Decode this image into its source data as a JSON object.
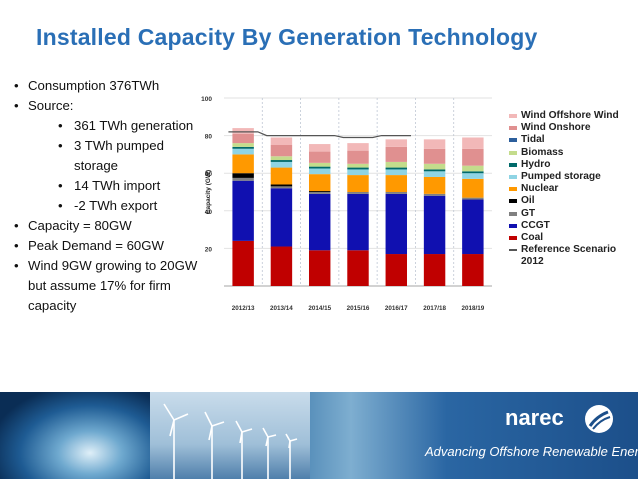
{
  "slide": {
    "title": "Installed Capacity By Generation Technology",
    "bullets": [
      {
        "text": "Consumption 376TWh",
        "level": 1
      },
      {
        "text": "Source:",
        "level": 1
      },
      {
        "text": "361 TWh generation",
        "level": 2
      },
      {
        "text": "3 TWh pumped storage",
        "level": 2
      },
      {
        "text": "14 TWh import",
        "level": 2
      },
      {
        "text": "-2 TWh export",
        "level": 2
      },
      {
        "text": "Capacity = 80GW",
        "level": 1
      },
      {
        "text": "Peak Demand = 60GW",
        "level": 1
      },
      {
        "text": "Wind 9GW growing to 20GW but assume 17% for firm capacity",
        "level": 1
      }
    ]
  },
  "chart_data": {
    "type": "bar",
    "stacked": true,
    "title": "",
    "xlabel": "",
    "ylabel": "Capacity (GW)",
    "ylim": [
      0,
      100
    ],
    "yticks": [
      20,
      40,
      60,
      80,
      100
    ],
    "categories": [
      "2012/13",
      "2013/14",
      "2014/15",
      "2015/16",
      "2016/17",
      "2017/18",
      "2018/19"
    ],
    "series": [
      {
        "name": "Coal",
        "color": "#c00000",
        "values": [
          24,
          21,
          19,
          19,
          17,
          17,
          17
        ]
      },
      {
        "name": "CCGT",
        "color": "#1010b0",
        "values": [
          32,
          31,
          30,
          30,
          32,
          31,
          29
        ]
      },
      {
        "name": "GT",
        "color": "#808080",
        "values": [
          1.5,
          1,
          1,
          1,
          1,
          1,
          1
        ]
      },
      {
        "name": "Oil",
        "color": "#000000",
        "values": [
          2.5,
          1,
          0.5,
          0,
          0,
          0,
          0
        ]
      },
      {
        "name": "Nuclear",
        "color": "#ff9900",
        "values": [
          10,
          9,
          9,
          9,
          9,
          9,
          10
        ]
      },
      {
        "name": "Pumped storage",
        "color": "#8fd4e4",
        "values": [
          3,
          3,
          3,
          3,
          3,
          3,
          3
        ]
      },
      {
        "name": "Hydro",
        "color": "#006a6a",
        "values": [
          1,
          1,
          1,
          1,
          1,
          1,
          1
        ]
      },
      {
        "name": "Biomass",
        "color": "#c4dc8c",
        "values": [
          2,
          2,
          2,
          2,
          3,
          3,
          3
        ]
      },
      {
        "name": "Tidal",
        "color": "#2c5e9c",
        "values": [
          0,
          0,
          0,
          0,
          0,
          0,
          0
        ]
      },
      {
        "name": "Wind Onshore",
        "color": "#e09090",
        "values": [
          5,
          6,
          6,
          7,
          8,
          8,
          9
        ]
      },
      {
        "name": "Wind Offshore Wind",
        "color": "#f2b8b8",
        "values": [
          3,
          4,
          4,
          4,
          4,
          5,
          6
        ]
      }
    ],
    "reference_line": {
      "name": "Reference Scenario 2012",
      "color": "#555555",
      "values": [
        82,
        80,
        80,
        79,
        80,
        0,
        0
      ]
    }
  },
  "legend": [
    {
      "label": "Wind Offshore Wind",
      "color": "#f2b8b8",
      "kind": "box"
    },
    {
      "label": "Wind Onshore",
      "color": "#e09090",
      "kind": "box"
    },
    {
      "label": "Tidal",
      "color": "#2c5e9c",
      "kind": "box"
    },
    {
      "label": "Biomass",
      "color": "#c4dc8c",
      "kind": "box"
    },
    {
      "label": "Hydro",
      "color": "#006a6a",
      "kind": "box"
    },
    {
      "label": "Pumped storage",
      "color": "#8fd4e4",
      "kind": "box"
    },
    {
      "label": "Nuclear",
      "color": "#ff9900",
      "kind": "box"
    },
    {
      "label": "Oil",
      "color": "#000000",
      "kind": "box"
    },
    {
      "label": "GT",
      "color": "#808080",
      "kind": "box"
    },
    {
      "label": "CCGT",
      "color": "#1010b0",
      "kind": "box"
    },
    {
      "label": "Coal",
      "color": "#c00000",
      "kind": "box"
    },
    {
      "label": "Reference Scenario 2012",
      "color": "#555555",
      "kind": "line"
    }
  ],
  "footer": {
    "brand": "narec",
    "tagline": "Advancing Offshore Renewable Energy"
  },
  "colors": {
    "title": "#2a6fb6"
  }
}
